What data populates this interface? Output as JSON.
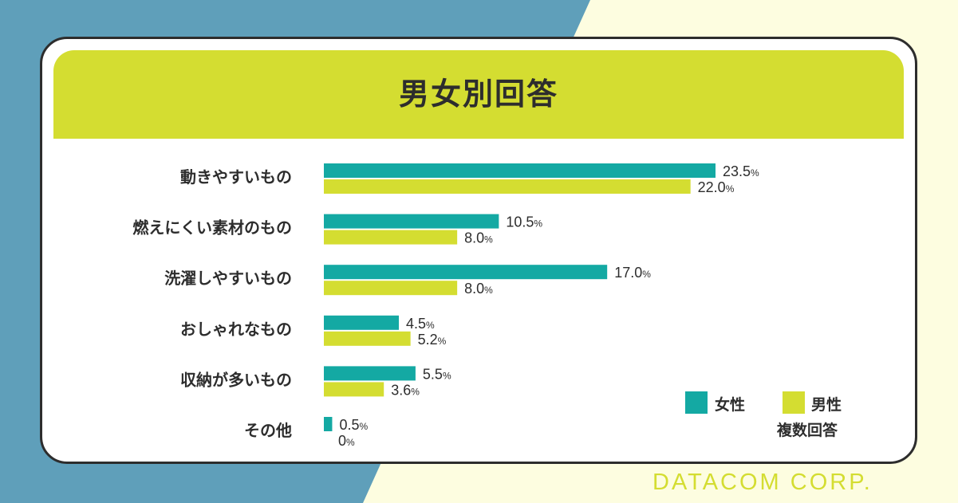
{
  "colors": {
    "female": "#14a9a3",
    "male": "#d4dd31",
    "background_blue": "#5f9fba",
    "background_cream": "#fdfde0",
    "text": "#2d2d2d"
  },
  "card": {
    "title": "男女別回答"
  },
  "legend": {
    "female_label": "女性",
    "male_label": "男性",
    "note": "複数回答"
  },
  "brand": "DATACOM CORP.",
  "chart_data": {
    "type": "bar",
    "orientation": "horizontal",
    "title": "男女別回答",
    "categories": [
      "動きやすいもの",
      "燃えにくい素材のもの",
      "洗濯しやすいもの",
      "おしゃれなもの",
      "収納が多いもの",
      "その他"
    ],
    "series": [
      {
        "name": "女性",
        "values": [
          23.5,
          10.5,
          17.0,
          4.5,
          5.5,
          0.5
        ],
        "labels": [
          "23.5",
          "10.5",
          "17.0",
          "4.5",
          "5.5",
          "0.5"
        ]
      },
      {
        "name": "男性",
        "values": [
          22.0,
          8.0,
          8.0,
          5.2,
          3.6,
          0
        ],
        "labels": [
          "22.0",
          "8.0",
          "8.0",
          "5.2",
          "3.6",
          "0"
        ]
      }
    ],
    "unit": "%",
    "xlim": [
      0,
      23.5
    ],
    "grid": false,
    "legend_position": "bottom-right"
  }
}
